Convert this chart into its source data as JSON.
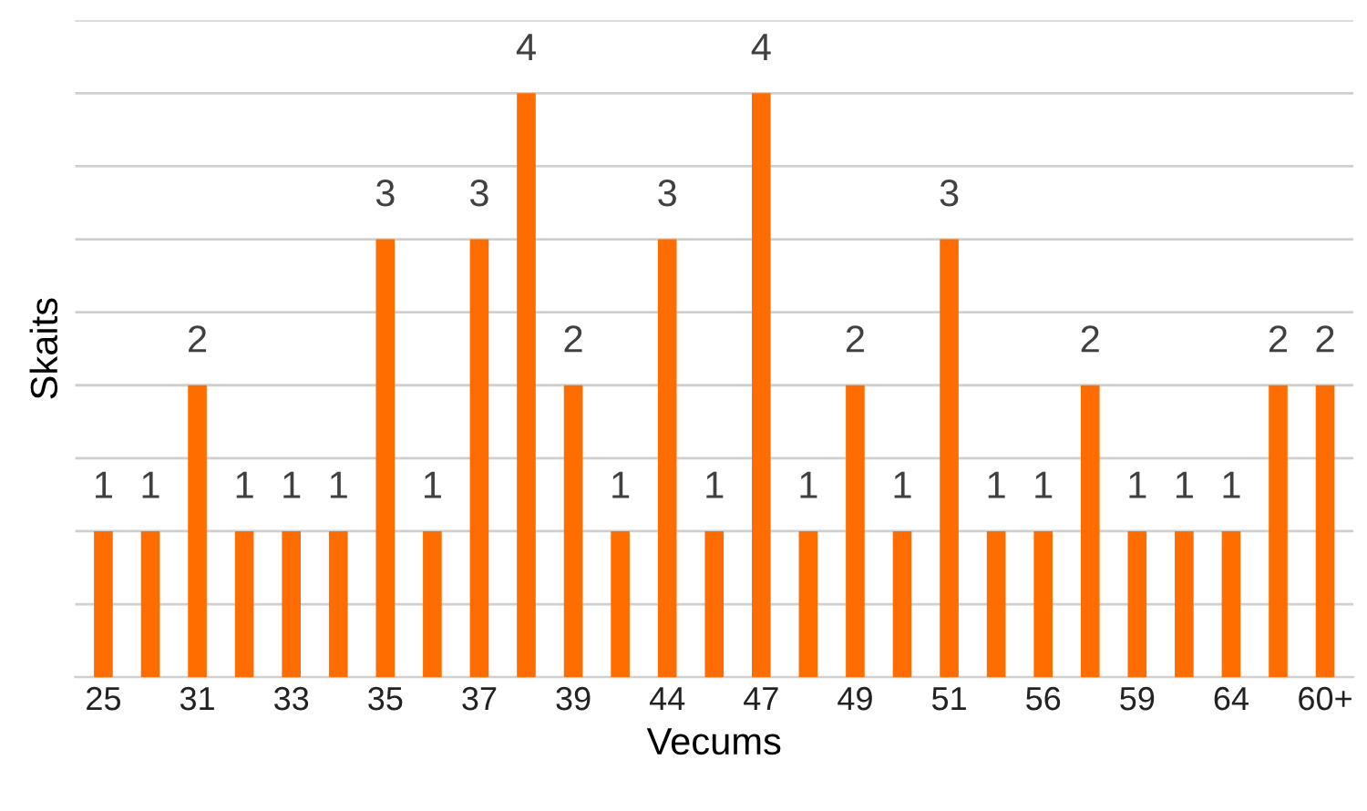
{
  "chart_data": {
    "type": "bar",
    "xlabel": "Vecums",
    "ylabel": "Skaits",
    "categories": [
      "25",
      null,
      "31",
      null,
      "33",
      null,
      "35",
      null,
      "37",
      null,
      "39",
      null,
      "44",
      null,
      "47",
      null,
      "49",
      null,
      "51",
      null,
      "56",
      null,
      "59",
      null,
      "64",
      null,
      "60+"
    ],
    "values": [
      1,
      1,
      2,
      1,
      1,
      1,
      3,
      1,
      3,
      4,
      2,
      1,
      3,
      1,
      4,
      1,
      2,
      1,
      3,
      1,
      1,
      2,
      1,
      1,
      1,
      2,
      2
    ],
    "color": "#ff6d00",
    "data_labels": true,
    "ylim": [
      0,
      4.5
    ],
    "yticks": [
      {
        "value": 0,
        "label": null
      },
      {
        "value": 0.5,
        "label": null
      },
      {
        "value": 1,
        "label": null
      },
      {
        "value": 1.5,
        "label": null
      },
      {
        "value": 2,
        "label": null
      },
      {
        "value": 2.5,
        "label": null
      },
      {
        "value": 3,
        "label": null
      },
      {
        "value": 3.5,
        "label": null
      },
      {
        "value": 4,
        "label": null
      },
      {
        "value": 4.5,
        "label": null
      }
    ],
    "grid": "y",
    "tick_labels": "x",
    "legend": false
  }
}
